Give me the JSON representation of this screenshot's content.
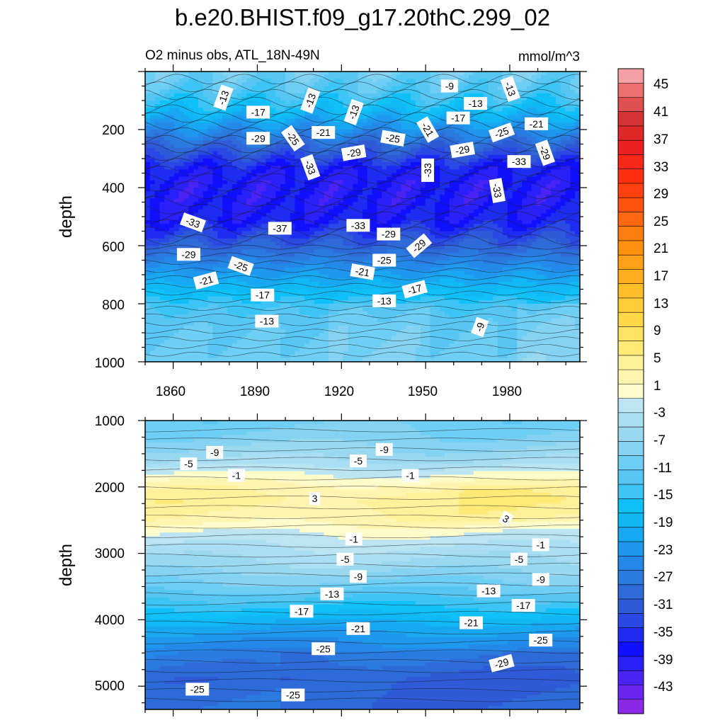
{
  "chart_data": {
    "type": "heatmap",
    "title": "b.e20.BHIST.f09_g17.20thC.299_02",
    "subtitle": "O2 minus obs, ATL_18N-49N",
    "units": "mmol/m^3",
    "xlabel": "",
    "ylabel": "depth",
    "x_range": [
      1850,
      2005
    ],
    "x_ticks": [
      "1860",
      "1890",
      "1920",
      "1950",
      "1980"
    ],
    "panels": [
      {
        "name": "upper",
        "ylim": [
          0,
          1000
        ],
        "y_ticks": [
          "200",
          "400",
          "600",
          "800",
          "1000"
        ],
        "profile": [
          [
            0,
            -10
          ],
          [
            60,
            -12
          ],
          [
            120,
            -16
          ],
          [
            200,
            -23
          ],
          [
            260,
            -29
          ],
          [
            330,
            -35
          ],
          [
            380,
            -37
          ],
          [
            450,
            -37
          ],
          [
            520,
            -35
          ],
          [
            560,
            -32
          ],
          [
            600,
            -29
          ],
          [
            650,
            -25
          ],
          [
            700,
            -21
          ],
          [
            760,
            -17
          ],
          [
            800,
            -14
          ],
          [
            850,
            -12
          ],
          [
            900,
            -11
          ],
          [
            1000,
            -10
          ]
        ],
        "contour_labels": [
          "-13",
          "-17",
          "-29",
          "-25",
          "-21",
          "-33",
          "-37",
          "-9",
          "-13"
        ]
      },
      {
        "name": "lower",
        "ylim": [
          1000,
          5350
        ],
        "y_ticks": [
          "1000",
          "2000",
          "3000",
          "4000",
          "5000"
        ],
        "profile": [
          [
            1000,
            -10
          ],
          [
            1300,
            -8
          ],
          [
            1600,
            -5
          ],
          [
            1800,
            -1
          ],
          [
            2000,
            2
          ],
          [
            2200,
            4
          ],
          [
            2500,
            2
          ],
          [
            2700,
            -1
          ],
          [
            2900,
            -3
          ],
          [
            3200,
            -6
          ],
          [
            3500,
            -10
          ],
          [
            3800,
            -15
          ],
          [
            4100,
            -20
          ],
          [
            4500,
            -25
          ],
          [
            4900,
            -28
          ],
          [
            5350,
            -27
          ]
        ],
        "contour_labels": [
          "-9",
          "-5",
          "-1",
          "3",
          "-13",
          "-17",
          "-21",
          "-25",
          "-29"
        ]
      }
    ],
    "colorbar": {
      "levels": [
        -45,
        -43,
        -41,
        -39,
        -37,
        -35,
        -33,
        -31,
        -29,
        -27,
        -25,
        -23,
        -21,
        -19,
        -17,
        -15,
        -13,
        -11,
        -9,
        -7,
        -5,
        -3,
        -1,
        1,
        3,
        5,
        7,
        9,
        11,
        13,
        15,
        17,
        19,
        21,
        23,
        25,
        27,
        29,
        31,
        33,
        35,
        37,
        39,
        41,
        43,
        45
      ],
      "colors": [
        "#8a29e8",
        "#6a26f0",
        "#4a24f5",
        "#2a20fa",
        "#1010ff",
        "#1e2cf2",
        "#2a48e4",
        "#2e5ad8",
        "#2e6ad8",
        "#2a7ae0",
        "#2488e8",
        "#1e98ee",
        "#18a8f2",
        "#10b8f6",
        "#10c0f8",
        "#3cc4f4",
        "#58c6f2",
        "#6ecef4",
        "#86d2f2",
        "#9ad8f0",
        "#aadef2",
        "#bce4f2",
        "#fffccc",
        "#fff4b0",
        "#fff09a",
        "#ffea78",
        "#ffe260",
        "#ffd848",
        "#ffcc3a",
        "#ffbe2a",
        "#ffae20",
        "#ffa018",
        "#ff9010",
        "#ff7c10",
        "#ff6810",
        "#ff5410",
        "#ff4010",
        "#ff3010",
        "#f82818",
        "#ec2020",
        "#de2828",
        "#d43434",
        "#e05050",
        "#ec7070",
        "#f4a0a4"
      ],
      "labels": [
        "45",
        "41",
        "37",
        "33",
        "29",
        "25",
        "21",
        "17",
        "13",
        "9",
        "5",
        "1",
        "-3",
        "-7",
        "-11",
        "-15",
        "-19",
        "-23",
        "-27",
        "-31",
        "-35",
        "-39",
        "-43"
      ]
    }
  }
}
